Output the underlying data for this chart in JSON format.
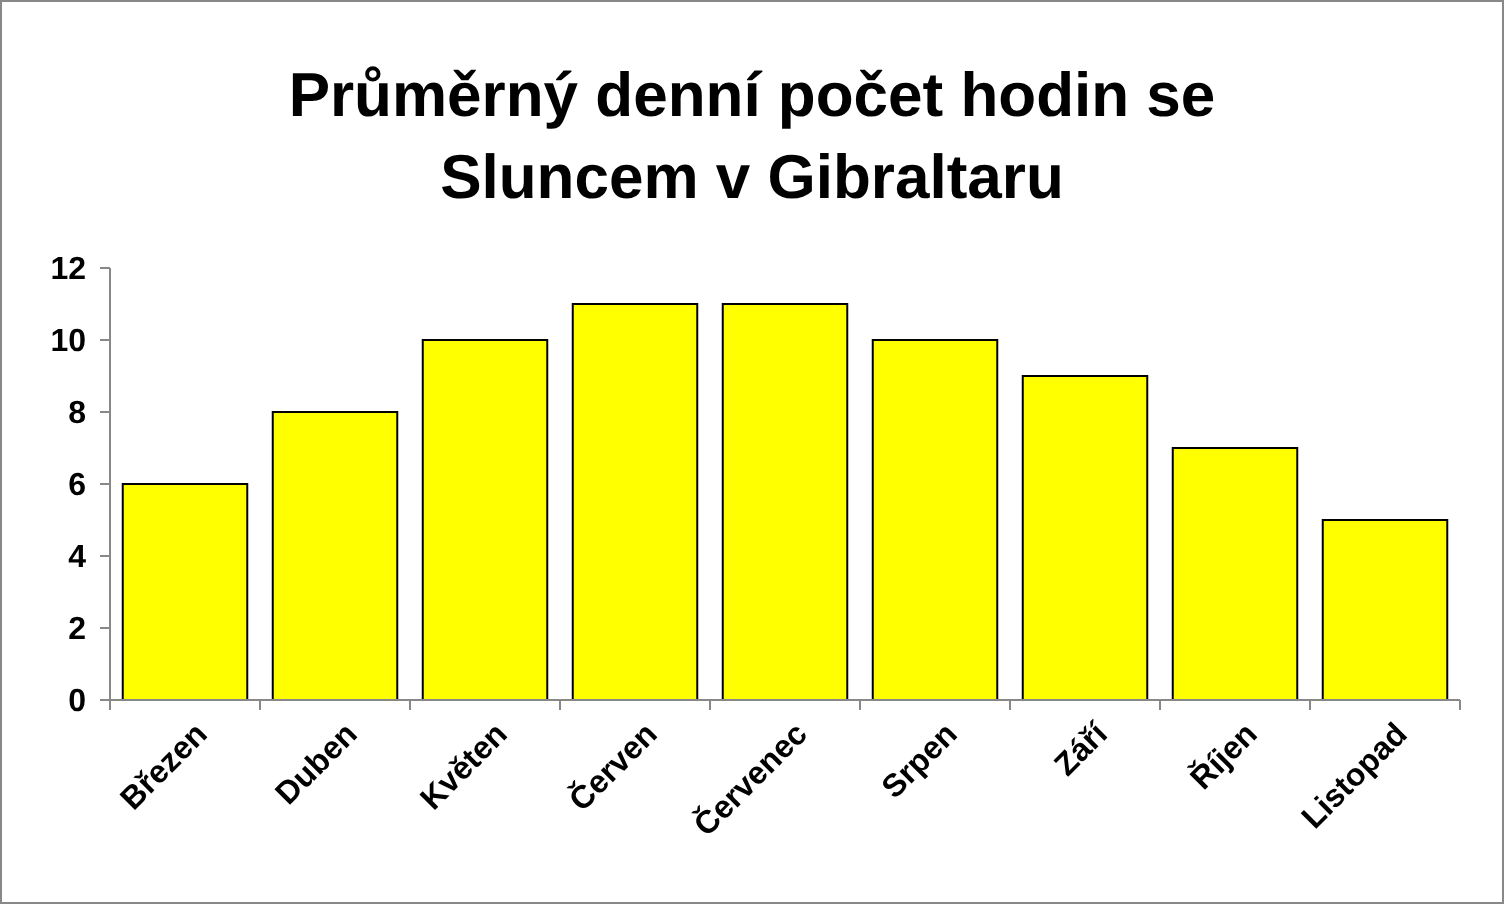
{
  "chart_data": {
    "type": "bar",
    "title": "Průměrný denní počet hodin se Sluncem v Gibraltaru",
    "categories": [
      "Březen",
      "Duben",
      "Květen",
      "Červen",
      "Červenec",
      "Srpen",
      "Září",
      "Říjen",
      "Listopad"
    ],
    "values": [
      6,
      8,
      10,
      11,
      11,
      10,
      9,
      7,
      5
    ],
    "color": "#ffff00",
    "ylim": [
      0,
      12
    ],
    "yticks": [
      0,
      2,
      4,
      6,
      8,
      10,
      12
    ],
    "grid": false
  }
}
